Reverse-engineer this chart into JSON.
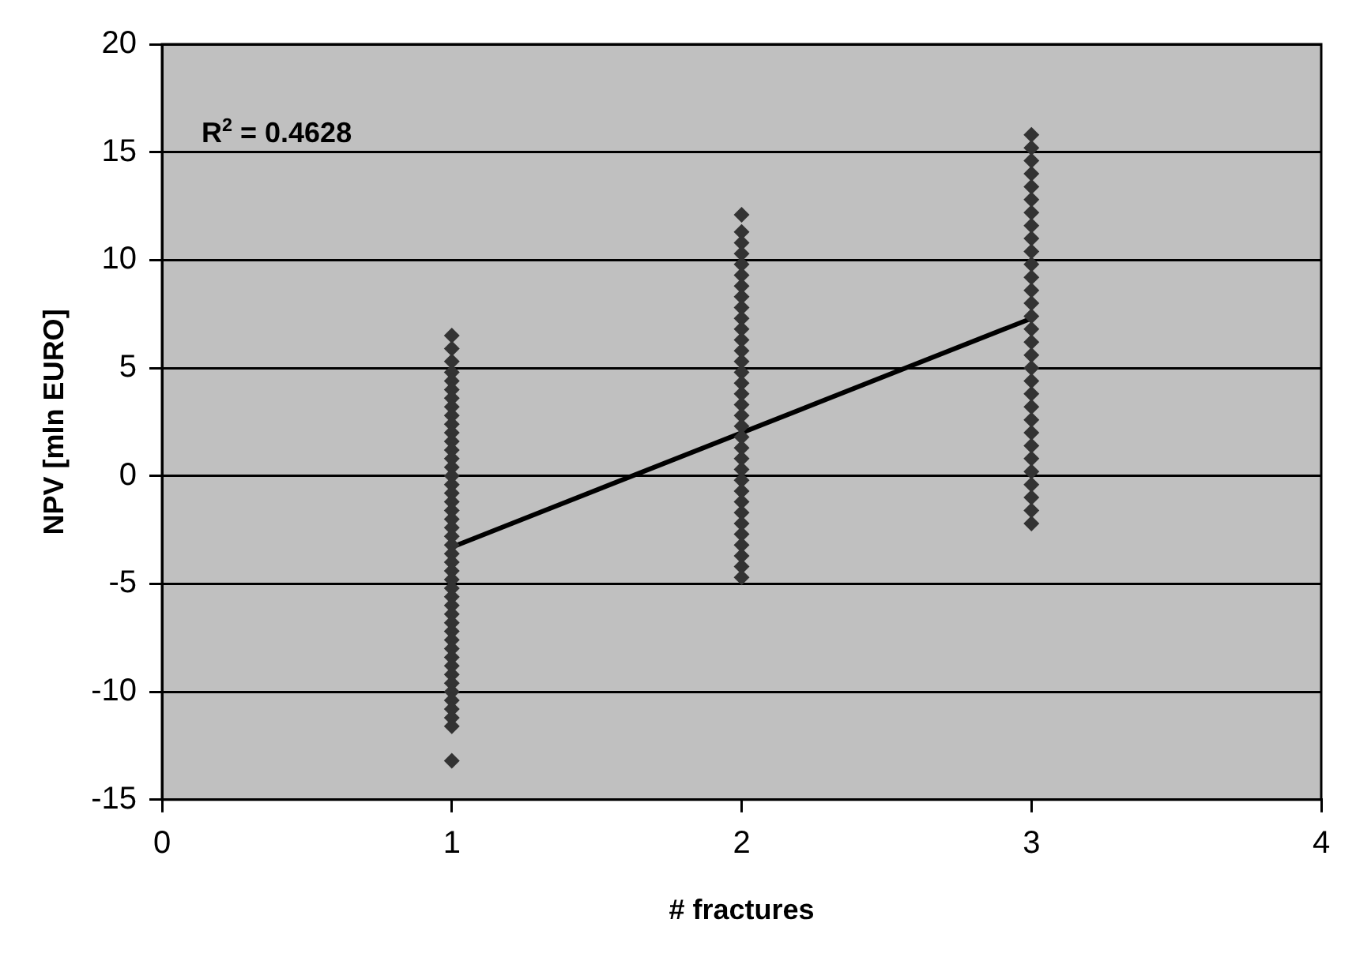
{
  "chart_data": {
    "type": "scatter",
    "xlabel": "# fractures",
    "ylabel": "NPV [mln EURO]",
    "annotations": [
      "R$^{2}$ = 0.4628"
    ],
    "xlim": [
      0,
      4
    ],
    "xticks": [
      0,
      1,
      2,
      3,
      4
    ],
    "ylim": [
      -15,
      20
    ],
    "yticks": [
      -15,
      -10,
      -5,
      0,
      5,
      10,
      15,
      20
    ],
    "grid": "y",
    "legend": false,
    "marker": "diamond",
    "series": [
      {
        "color": "#333333",
        "x": [
          1,
          1,
          1,
          1,
          1,
          1,
          1,
          1,
          1,
          1,
          1,
          1,
          1,
          1,
          1,
          1,
          1,
          1,
          1,
          1,
          1,
          1,
          1,
          1,
          1,
          1,
          1,
          1,
          1,
          1,
          1,
          1,
          1,
          1,
          1,
          1,
          1,
          1,
          1,
          1,
          1,
          1,
          1,
          1,
          1,
          1,
          2,
          2,
          2,
          2,
          2,
          2,
          2,
          2,
          2,
          2,
          2,
          2,
          2,
          2,
          2,
          2,
          2,
          2,
          2,
          2,
          2,
          2,
          2,
          2,
          2,
          2,
          2,
          2,
          2,
          2,
          2,
          2,
          2,
          2,
          3,
          3,
          3,
          3,
          3,
          3,
          3,
          3,
          3,
          3,
          3,
          3,
          3,
          3,
          3,
          3,
          3,
          3,
          3,
          3,
          3,
          3,
          3,
          3,
          3,
          3,
          3,
          3,
          3,
          3,
          3
        ],
        "values": [
          6.5,
          5.9,
          5.3,
          4.8,
          4.4,
          4.0,
          3.6,
          3.2,
          2.8,
          2.4,
          2.0,
          1.6,
          1.2,
          0.8,
          0.4,
          0,
          -0.4,
          -0.8,
          -1.2,
          -1.6,
          -2.0,
          -2.4,
          -2.8,
          -3.2,
          -3.6,
          -4.0,
          -4.4,
          -4.8,
          -5.2,
          -5.6,
          -6.0,
          -6.4,
          -6.8,
          -7.2,
          -7.6,
          -8.0,
          -8.4,
          -8.8,
          -9.2,
          -9.6,
          -10.0,
          -10.4,
          -10.8,
          -11.2,
          -11.6,
          -13.2,
          12.1,
          11.3,
          10.8,
          10.3,
          9.8,
          9.3,
          8.8,
          8.3,
          7.8,
          7.3,
          6.8,
          6.3,
          5.8,
          5.3,
          4.8,
          4.3,
          3.8,
          3.3,
          2.8,
          2.3,
          1.8,
          1.3,
          0.8,
          0.3,
          -0.2,
          -0.7,
          -1.2,
          -1.7,
          -2.2,
          -2.7,
          -3.2,
          -3.7,
          -4.2,
          -4.7,
          15.8,
          15.2,
          14.6,
          14.0,
          13.4,
          12.8,
          12.2,
          11.6,
          11.0,
          10.4,
          9.8,
          9.2,
          8.6,
          8.0,
          7.4,
          6.8,
          6.2,
          5.6,
          5.0,
          4.4,
          3.8,
          3.2,
          2.6,
          2.0,
          1.4,
          0.8,
          0.2,
          -0.4,
          -1.0,
          -1.6,
          -2.2
        ]
      },
      {
        "type": "line",
        "color": "#000000",
        "marker": "none",
        "x": [
          1,
          3
        ],
        "values": [
          -3.3,
          7.3
        ]
      }
    ]
  }
}
